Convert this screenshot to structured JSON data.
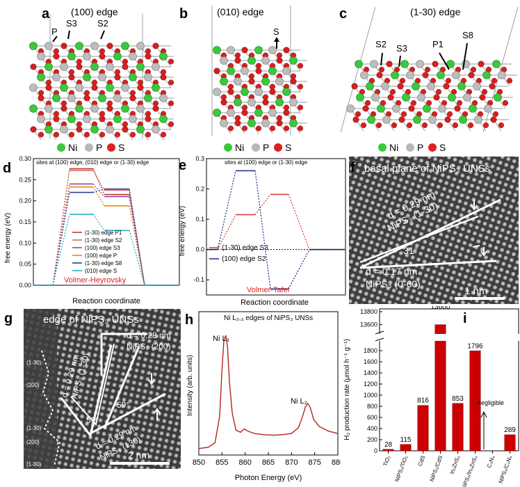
{
  "panels": {
    "a": {
      "letter": "a",
      "title": "(100) edge",
      "sites": [
        "P",
        "S3",
        "S2"
      ]
    },
    "b": {
      "letter": "b",
      "title": "(010) edge",
      "sites": [
        "S"
      ]
    },
    "c": {
      "letter": "c",
      "title": "(1-30) edge",
      "sites": [
        "S2",
        "S3",
        "P1",
        "S8"
      ]
    },
    "legend": {
      "ni": "Ni",
      "p": "P",
      "s": "S"
    },
    "d": {
      "letter": "d",
      "note": "sites at (100) edge, (010) edge or (1-30) edge",
      "mechanism": "Volmer-Heyrovsky"
    },
    "e": {
      "letter": "e",
      "note": "sites at (100) edge or (1-30) edge",
      "mechanism": "Volmer-Tafel"
    },
    "f": {
      "letter": "f",
      "title": "basal plane of NiPS₃ UNSs",
      "d1": "d = 0.29 nm",
      "d1b": "NiPS₃ (1-30)",
      "d2": "d = 0.17 nm",
      "d2b": "NiPS₃ (0-60)",
      "angle": "31°",
      "scale": "1 nm"
    },
    "g": {
      "letter": "g",
      "title": "edge of NiPS₃ UNSs",
      "d1": "d = 0.29 nm",
      "d1b": "NiPS₃ (1-30)",
      "d2": "d = 0.28 nm",
      "d2b": "NiPS₃ (200)",
      "d3": "d = 0.29 nm",
      "d3b": "NiPS₃ (130)",
      "a1": "59°",
      "a2": "59°",
      "facets": [
        "(1-30)",
        "(200)",
        "(1-30)",
        "(200)",
        "(1-30)"
      ],
      "scale": "2 nm"
    },
    "h": {
      "letter": "h",
      "title": "Ni L₂,₃ edges of NiPS₃ UNSs",
      "peak1": "Ni L₃",
      "peak2": "Ni L₂"
    },
    "i": {
      "letter": "i",
      "annotation": "negligible"
    }
  },
  "chart_data": [
    {
      "type": "line",
      "panel": "d",
      "xlabel": "Reaction coordinate",
      "ylabel": "free energy (eV)",
      "ylim": [
        0,
        0.3
      ],
      "yticks": [
        0.0,
        0.05,
        0.1,
        0.15,
        0.2,
        0.25,
        0.3
      ],
      "series": [
        {
          "name": "(1-30) edge P1",
          "color": "#c0392b",
          "values": [
            0,
            0.276,
            0.215,
            0
          ]
        },
        {
          "name": "(1-30) edge S2",
          "color": "#d66a6a",
          "values": [
            0,
            0.272,
            0.225,
            0
          ]
        },
        {
          "name": "(100) edge S3",
          "color": "#8e44ad",
          "values": [
            0,
            0.24,
            0.21,
            0
          ]
        },
        {
          "name": "(100) edge P",
          "color": "#e08e0b",
          "values": [
            0,
            0.233,
            0.188,
            0
          ]
        },
        {
          "name": "(1-30) edge S8",
          "color": "#2c3e8f",
          "values": [
            0,
            0.22,
            0.228,
            0
          ]
        },
        {
          "name": "(010) edge S",
          "color": "#20b2c8",
          "values": [
            0,
            0.168,
            0.13,
            0
          ]
        }
      ]
    },
    {
      "type": "line",
      "panel": "e",
      "xlabel": "Reaction coordinate",
      "ylabel": "free energy (eV)",
      "ylim": [
        -0.15,
        0.3
      ],
      "yticks": [
        -0.1,
        0.0,
        0.1,
        0.2,
        0.3
      ],
      "series": [
        {
          "name": "(1-30) edge S3",
          "color": "#d9403a",
          "values": [
            0,
            0.115,
            0.182,
            0
          ]
        },
        {
          "name": "(100) edge S2",
          "color": "#283593",
          "values": [
            0,
            0.26,
            -0.13,
            0
          ]
        }
      ]
    },
    {
      "type": "line",
      "panel": "h",
      "xlabel": "Photon Energy (eV)",
      "ylabel": "Intensity (arb. units)",
      "xlim": [
        850,
        880
      ],
      "xticks": [
        850,
        855,
        860,
        865,
        870,
        875,
        880
      ],
      "series": [
        {
          "name": "",
          "color": "#b3261e",
          "x": [
            850,
            852,
            853.5,
            854.5,
            855,
            855.4,
            855.8,
            856.2,
            856.6,
            857.2,
            858,
            859,
            859.8,
            860.6,
            862,
            864,
            866,
            868,
            870,
            871.5,
            872.4,
            873,
            873.5,
            874,
            874.8,
            876,
            878,
            880
          ],
          "values": [
            0.02,
            0.03,
            0.07,
            0.3,
            0.7,
            0.95,
            1.0,
            0.9,
            0.6,
            0.33,
            0.18,
            0.16,
            0.19,
            0.17,
            0.15,
            0.14,
            0.135,
            0.14,
            0.15,
            0.2,
            0.3,
            0.38,
            0.41,
            0.38,
            0.27,
            0.21,
            0.17,
            0.15
          ]
        }
      ]
    },
    {
      "type": "bar",
      "panel": "i",
      "ylabel": "H₂ production rate (μmol h⁻¹ g⁻¹)",
      "categories": [
        "TiO₂",
        "NiPS₃/TiO₂",
        "CdS",
        "NiPS₃/CdS",
        "In₂ZnS₄",
        "NiPS₃/In₂ZnS₄",
        "C₃N₄",
        "NiPS₃/C₃N₄"
      ],
      "values": [
        28,
        115,
        816,
        13600,
        853,
        1796,
        0,
        289
      ],
      "labels": [
        "28",
        "115",
        "816",
        "13600",
        "853",
        "1796",
        "",
        "289"
      ],
      "yticks": [
        0,
        200,
        400,
        600,
        800,
        1000,
        1200,
        1400,
        1600,
        1800,
        13600,
        13800
      ],
      "ylim_lower": [
        0,
        1900
      ],
      "ylim_upper": [
        13500,
        13800
      ],
      "color": "#cc0000"
    }
  ]
}
